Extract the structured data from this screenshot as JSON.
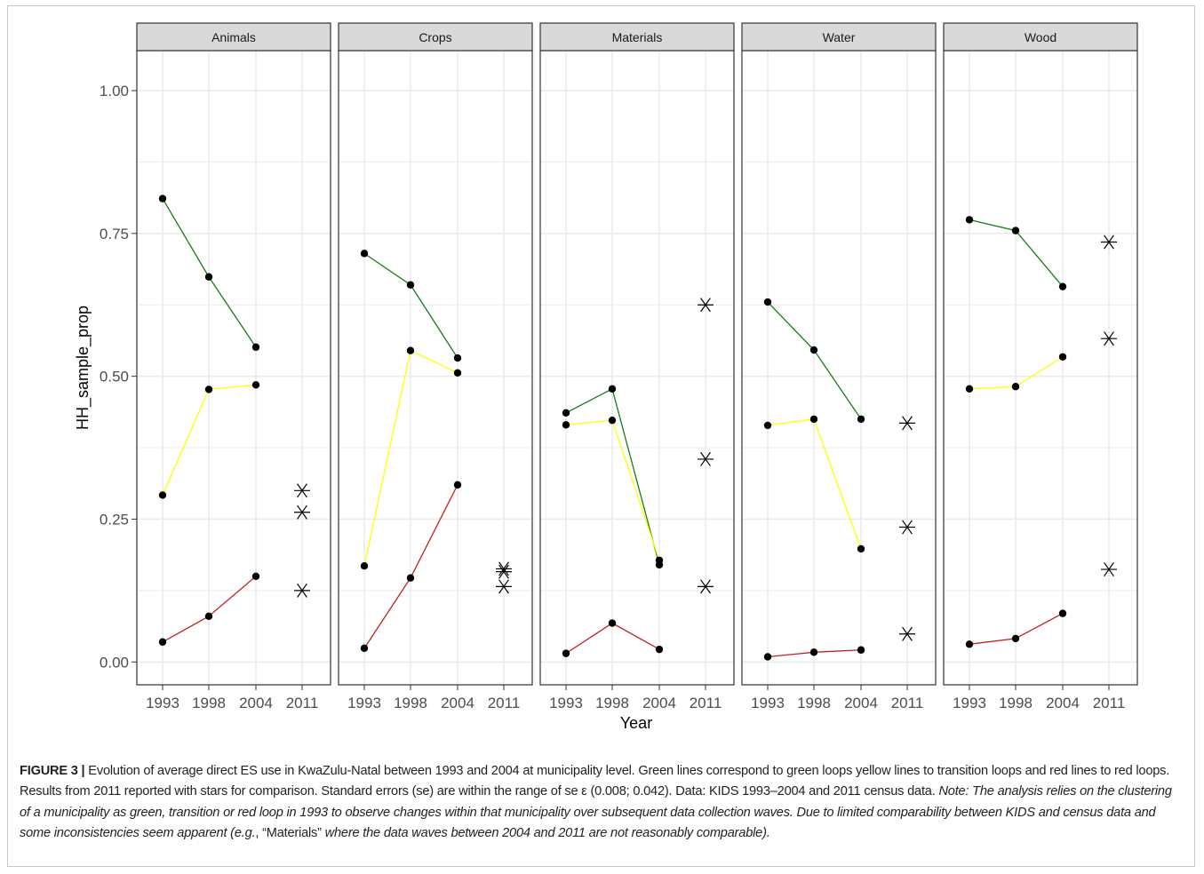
{
  "chart_data": {
    "type": "line",
    "facets": [
      "Animals",
      "Crops",
      "Materials",
      "Water",
      "Wood"
    ],
    "x": [
      "1993",
      "1998",
      "2004",
      "2011"
    ],
    "xlabel": "Year",
    "ylabel": "HH_sample_prop",
    "ylim": [
      -0.04,
      1.07
    ],
    "yticks": [
      0.0,
      0.25,
      0.5,
      0.75,
      1.0
    ],
    "ytick_labels": [
      "0.00",
      "0.25",
      "0.50",
      "0.75",
      "1.00"
    ],
    "grid": true,
    "legend": "none",
    "colors": {
      "green": "#1a7a1a",
      "yellow": "#ffff00",
      "red": "#c02020",
      "point": "#000000",
      "strip_bg": "#d9d9d9",
      "grid": "#ebebeb",
      "border": "#333333"
    },
    "panels": [
      {
        "facet": "Animals",
        "series": [
          {
            "color": "green",
            "values": [
              0.811,
              0.674,
              0.551
            ]
          },
          {
            "color": "yellow",
            "values": [
              0.292,
              0.477,
              0.485
            ]
          },
          {
            "color": "red",
            "values": [
              0.035,
              0.08,
              0.15
            ]
          }
        ],
        "stars_2011": [
          0.3,
          0.262,
          0.125
        ]
      },
      {
        "facet": "Crops",
        "series": [
          {
            "color": "green",
            "values": [
              0.715,
              0.66,
              0.532
            ]
          },
          {
            "color": "yellow",
            "values": [
              0.168,
              0.545,
              0.506
            ]
          },
          {
            "color": "red",
            "values": [
              0.024,
              0.147,
              0.31
            ]
          }
        ],
        "stars_2011": [
          0.163,
          0.158,
          0.132
        ]
      },
      {
        "facet": "Materials",
        "series": [
          {
            "color": "green",
            "values": [
              0.436,
              0.478,
              0.17
            ]
          },
          {
            "color": "yellow",
            "values": [
              0.415,
              0.423,
              0.178
            ]
          },
          {
            "color": "red",
            "values": [
              0.015,
              0.068,
              0.022
            ]
          }
        ],
        "stars_2011": [
          0.625,
          0.355,
          0.132
        ]
      },
      {
        "facet": "Water",
        "series": [
          {
            "color": "green",
            "values": [
              0.63,
              0.546,
              0.425
            ]
          },
          {
            "color": "yellow",
            "values": [
              0.414,
              0.425,
              0.198
            ]
          },
          {
            "color": "red",
            "values": [
              0.009,
              0.017,
              0.021
            ]
          }
        ],
        "stars_2011": [
          0.418,
          0.236,
          0.049
        ]
      },
      {
        "facet": "Wood",
        "series": [
          {
            "color": "green",
            "values": [
              0.774,
              0.755,
              0.657
            ]
          },
          {
            "color": "yellow",
            "values": [
              0.478,
              0.482,
              0.534
            ]
          },
          {
            "color": "red",
            "values": [
              0.031,
              0.041,
              0.085
            ]
          }
        ],
        "stars_2011": [
          0.735,
          0.566,
          0.162
        ]
      }
    ]
  },
  "caption": {
    "label": "FIGURE 3 |",
    "text1": " Evolution of average direct ES use in KwaZulu-Natal between 1993 and 2004 at municipality level. Green lines correspond to green loops yellow lines to transition loops and red lines to red loops. Results from 2011 reported with stars for comparison. Standard errors (se) are within the range of se ε (0.008; 0.042). Data: KIDS 1993–2004 and 2011 census data. ",
    "note_italic": "Note: The analysis relies on the clustering of a municipality as green, transition or red loop in 1993 to observe changes within that municipality over subsequent data collection waves. Due to limited comparability between KIDS and census data and some inconsistencies seem apparent (e.g.",
    "mid_plain": ", “Materials” ",
    "end_italic": "where the data waves between 2004 and 2011 are not reasonably comparable)."
  }
}
